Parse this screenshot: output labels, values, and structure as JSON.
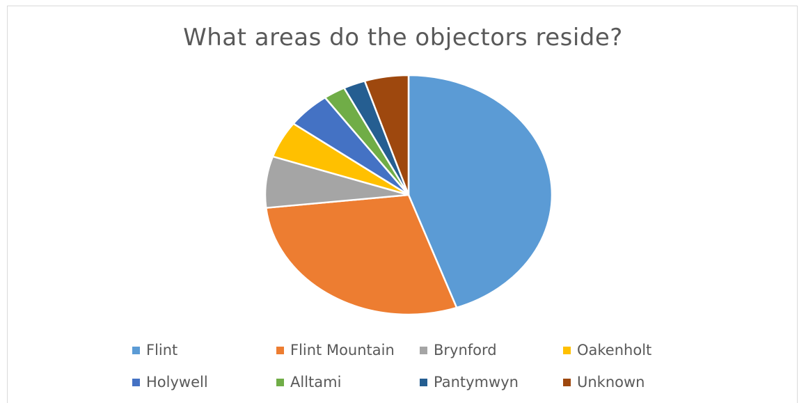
{
  "chart_data": {
    "type": "pie",
    "title": "What areas do the objectors reside?",
    "legend_position": "bottom",
    "slices": [
      {
        "label": "Flint",
        "value": 45,
        "color": "#5B9BD5"
      },
      {
        "label": "Flint Mountain",
        "value": 29,
        "color": "#ED7D31"
      },
      {
        "label": "Brynford",
        "value": 7,
        "color": "#A5A5A5"
      },
      {
        "label": "Oakenholt",
        "value": 5,
        "color": "#FFC000"
      },
      {
        "label": "Holywell",
        "value": 5,
        "color": "#4472C4"
      },
      {
        "label": "Alltami",
        "value": 2.5,
        "color": "#70AD47"
      },
      {
        "label": "Pantymwyn",
        "value": 2.5,
        "color": "#255E91"
      },
      {
        "label": "Unknown",
        "value": 5,
        "color": "#9E480E"
      }
    ]
  }
}
